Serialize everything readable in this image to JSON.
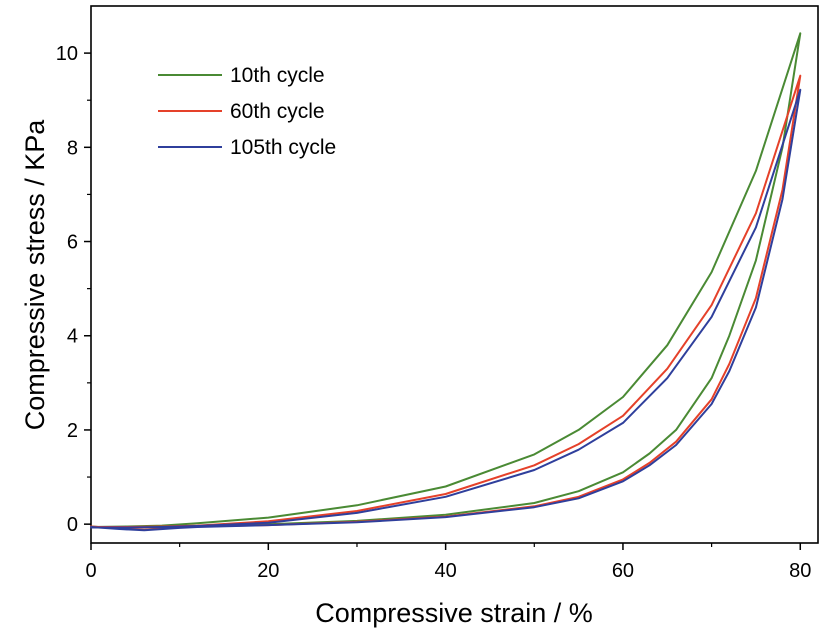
{
  "chart_data": {
    "type": "line",
    "title": "",
    "xlabel": "Compressive strain / %",
    "ylabel": "Compressive stress / KPa",
    "xlim": [
      0,
      82
    ],
    "ylim": [
      -0.4,
      11
    ],
    "xticks": [
      "0",
      "20",
      "40",
      "60",
      "80"
    ],
    "xtick_values": [
      0,
      20,
      40,
      60,
      80
    ],
    "yticks": [
      "0",
      "2",
      "4",
      "6",
      "8",
      "10"
    ],
    "ytick_values": [
      0,
      2,
      4,
      6,
      8,
      10
    ],
    "grid": false,
    "legend_position": "top-left",
    "series": [
      {
        "name": "10th cycle",
        "color": "#4a8a34",
        "x": [
          0,
          4,
          8,
          12,
          20,
          30,
          40,
          50,
          55,
          60,
          65,
          70,
          75,
          80,
          78,
          75,
          72,
          70,
          66,
          63,
          60,
          55,
          50,
          40,
          30,
          20,
          12,
          10,
          6,
          3,
          0
        ],
        "y": [
          -0.06,
          -0.05,
          -0.03,
          0.02,
          0.14,
          0.4,
          0.8,
          1.48,
          2.0,
          2.7,
          3.8,
          5.35,
          7.5,
          10.42,
          8.0,
          5.6,
          4.0,
          3.1,
          2.0,
          1.5,
          1.1,
          0.7,
          0.45,
          0.2,
          0.07,
          0.0,
          -0.04,
          -0.06,
          -0.12,
          -0.09,
          -0.05
        ]
      },
      {
        "name": "60th cycle",
        "color": "#e5412a",
        "x": [
          0,
          4,
          8,
          12,
          20,
          30,
          40,
          50,
          55,
          60,
          65,
          70,
          75,
          80,
          78,
          75,
          72,
          70,
          66,
          63,
          60,
          55,
          50,
          40,
          30,
          20,
          12,
          10,
          6,
          3,
          0
        ],
        "y": [
          -0.06,
          -0.06,
          -0.05,
          -0.03,
          0.06,
          0.28,
          0.64,
          1.25,
          1.7,
          2.3,
          3.3,
          4.65,
          6.6,
          9.52,
          7.1,
          4.8,
          3.4,
          2.65,
          1.75,
          1.3,
          0.95,
          0.58,
          0.38,
          0.16,
          0.05,
          -0.02,
          -0.05,
          -0.07,
          -0.12,
          -0.09,
          -0.05
        ]
      },
      {
        "name": "105th cycle",
        "color": "#2f3f9c",
        "x": [
          0,
          4,
          8,
          12,
          20,
          30,
          40,
          50,
          55,
          60,
          65,
          70,
          75,
          80,
          78,
          75,
          72,
          70,
          66,
          63,
          60,
          55,
          50,
          40,
          30,
          20,
          12,
          10,
          6,
          3,
          0
        ],
        "y": [
          -0.07,
          -0.07,
          -0.06,
          -0.04,
          0.03,
          0.24,
          0.58,
          1.15,
          1.58,
          2.15,
          3.1,
          4.4,
          6.3,
          9.22,
          6.9,
          4.6,
          3.25,
          2.55,
          1.68,
          1.25,
          0.91,
          0.55,
          0.36,
          0.15,
          0.04,
          -0.02,
          -0.06,
          -0.08,
          -0.13,
          -0.1,
          -0.06
        ]
      }
    ]
  }
}
